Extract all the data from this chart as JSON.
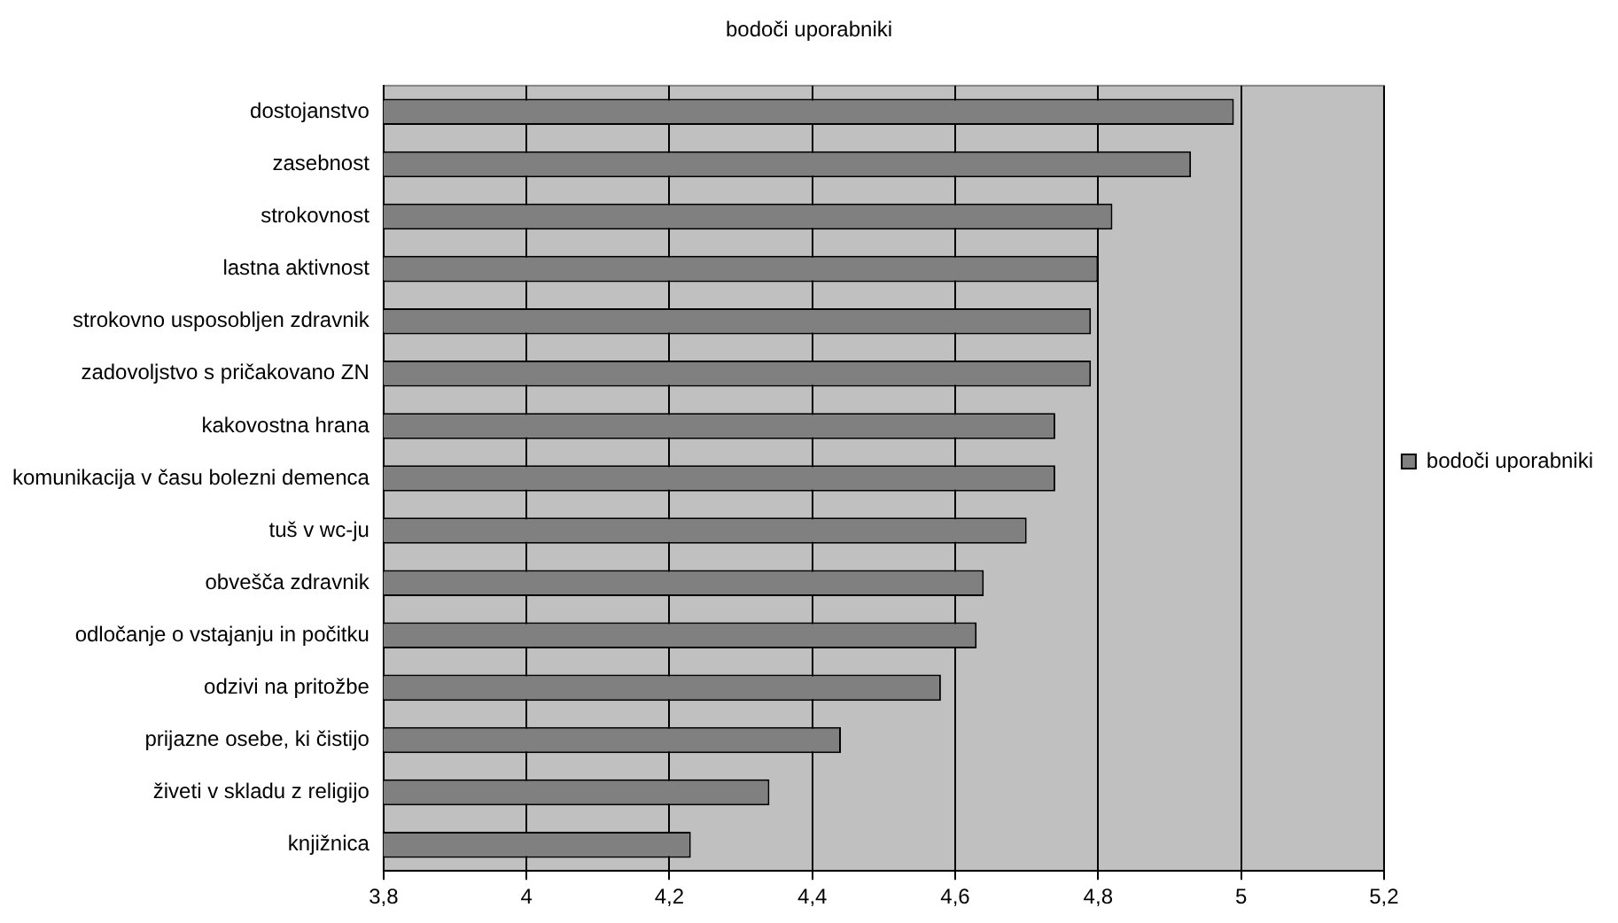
{
  "chart_data": {
    "type": "bar",
    "orientation": "horizontal",
    "title": "bodoči uporabniki",
    "categories": [
      "dostojanstvo",
      "zasebnost",
      "strokovnost",
      "lastna aktivnost",
      "strokovno usposobljen zdravnik",
      "zadovoljstvo s pričakovano ZN",
      "kakovostna hrana",
      "komunikacija v času bolezni demenca",
      "tuš v wc-ju",
      "obvešča zdravnik",
      "odločanje o vstajanju in počitku",
      "odzivi na pritožbe",
      "prijazne osebe, ki čistijo",
      "živeti v skladu z religijo",
      "knjižnica"
    ],
    "series": [
      {
        "name": "bodoči uporabniki",
        "color": "#808080",
        "values": [
          4.99,
          4.93,
          4.82,
          4.8,
          4.79,
          4.79,
          4.74,
          4.74,
          4.7,
          4.64,
          4.63,
          4.58,
          4.44,
          4.34,
          4.23
        ]
      }
    ],
    "xlim": [
      3.8,
      5.2
    ],
    "xticks": [
      {
        "value": 3.8,
        "label": "3,8"
      },
      4,
      {
        "value": 4.2,
        "label": "4,2"
      },
      {
        "value": 4.4,
        "label": "4,4"
      },
      {
        "value": 4.6,
        "label": "4,6"
      },
      {
        "value": 4.8,
        "label": "4,8"
      },
      5,
      {
        "value": 5.2,
        "label": "5,2"
      }
    ],
    "grid": "x",
    "legend": "right"
  }
}
